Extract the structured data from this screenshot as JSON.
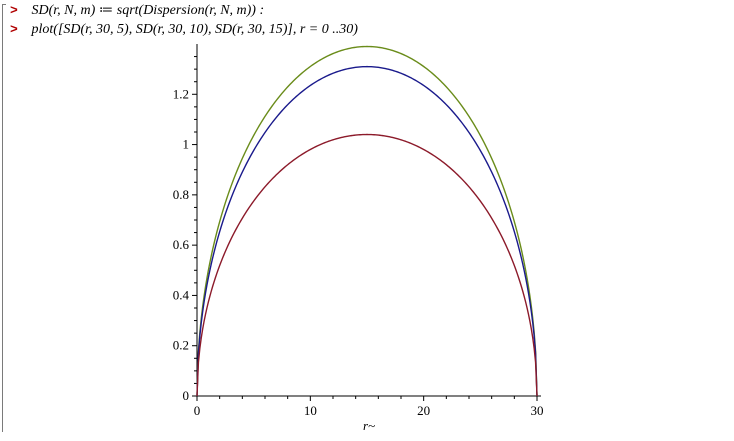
{
  "commands": [
    {
      "prompt": ">",
      "text": "SD(r, N, m) ≔ sqrt(Dispersion(r, N, m)) :"
    },
    {
      "prompt": ">",
      "text": "plot([SD(r, 30, 5), SD(r, 30, 10), SD(r, 30, 15)], r = 0 ..30)"
    }
  ],
  "chart_data": {
    "type": "line",
    "title": "",
    "xlabel": "r~",
    "ylabel": "",
    "xlim": [
      0,
      30
    ],
    "ylim": [
      0,
      1.4
    ],
    "x_ticks": [
      0,
      10,
      20,
      30
    ],
    "y_ticks": [
      0,
      0.2,
      0.4,
      0.6,
      0.8,
      1,
      1.2
    ],
    "x_tick_labels": [
      "0",
      "10",
      "20",
      "30"
    ],
    "y_tick_labels": [
      "0",
      "0.2",
      "0.4",
      "0.6",
      "0.8",
      "1",
      "1.2"
    ],
    "grid": false,
    "legend": "none",
    "series": [
      {
        "color": "#6a8c1a",
        "peak": 1.39,
        "x": [
          0,
          3,
          6,
          9,
          12,
          15,
          18,
          21,
          24,
          27,
          30
        ],
        "y": [
          0,
          0.834,
          1.112,
          1.274,
          1.362,
          1.39,
          1.362,
          1.274,
          1.112,
          0.834,
          0
        ]
      },
      {
        "color": "#1a1a8c",
        "peak": 1.31,
        "x": [
          0,
          3,
          6,
          9,
          12,
          15,
          18,
          21,
          24,
          27,
          30
        ],
        "y": [
          0,
          0.786,
          1.048,
          1.2,
          1.284,
          1.31,
          1.284,
          1.2,
          1.048,
          0.786,
          0
        ]
      },
      {
        "color": "#8c1a2a",
        "peak": 1.04,
        "x": [
          0,
          3,
          6,
          9,
          12,
          15,
          18,
          21,
          24,
          27,
          30
        ],
        "y": [
          0,
          0.624,
          0.832,
          0.953,
          1.019,
          1.04,
          1.019,
          0.953,
          0.832,
          0.624,
          0
        ]
      }
    ]
  }
}
